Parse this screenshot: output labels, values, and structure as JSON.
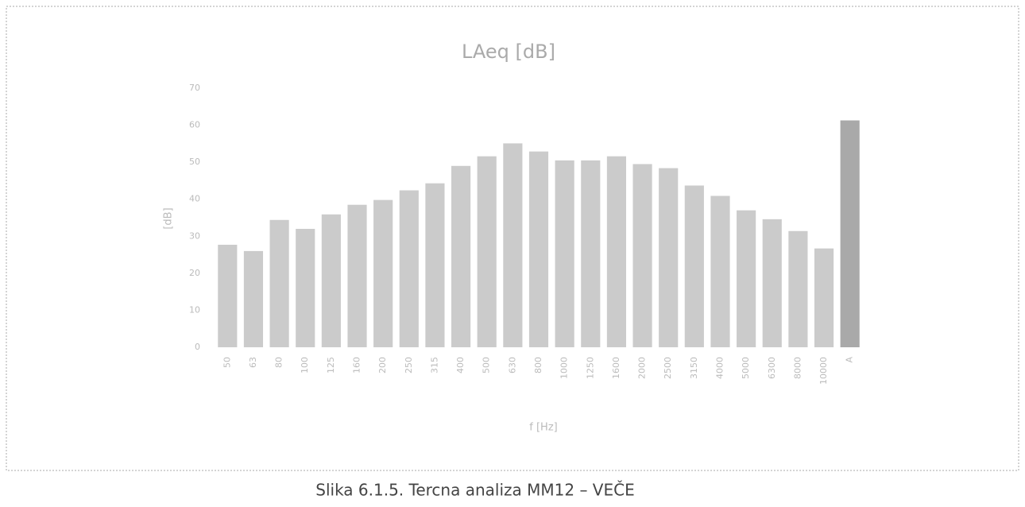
{
  "chart_data": {
    "type": "bar",
    "title": "LAeq [dB]",
    "x_label": "f [Hz]",
    "y_label": "[dB]",
    "categories": [
      "50",
      "63",
      "80",
      "100",
      "125",
      "160",
      "200",
      "250",
      "315",
      "400",
      "500",
      "630",
      "800",
      "1000",
      "1250",
      "1600",
      "2000",
      "2500",
      "3150",
      "4000",
      "5000",
      "6300",
      "8000",
      "10000",
      "A"
    ],
    "values": [
      27.7,
      26.0,
      34.4,
      32.0,
      35.9,
      38.5,
      39.8,
      42.4,
      44.3,
      49.0,
      51.6,
      55.1,
      52.9,
      50.5,
      50.5,
      51.6,
      49.5,
      48.4,
      43.7,
      40.9,
      37.0,
      34.6,
      31.4,
      26.7,
      61.3
    ],
    "colors": [
      "#cbcbcb",
      "#cbcbcb",
      "#cbcbcb",
      "#cbcbcb",
      "#cbcbcb",
      "#cbcbcb",
      "#cbcbcb",
      "#cbcbcb",
      "#cbcbcb",
      "#cbcbcb",
      "#cbcbcb",
      "#cbcbcb",
      "#cbcbcb",
      "#cbcbcb",
      "#cbcbcb",
      "#cbcbcb",
      "#cbcbcb",
      "#cbcbcb",
      "#cbcbcb",
      "#cbcbcb",
      "#cbcbcb",
      "#cbcbcb",
      "#cbcbcb",
      "#cbcbcb",
      "#a9a9a9"
    ],
    "ylim": [
      0,
      70
    ],
    "yticks": [
      0,
      10,
      20,
      30,
      40,
      50,
      60,
      70
    ],
    "grid": false
  },
  "caption": "Slika 6.1.5. Tercna analiza MM12 – VEČE"
}
